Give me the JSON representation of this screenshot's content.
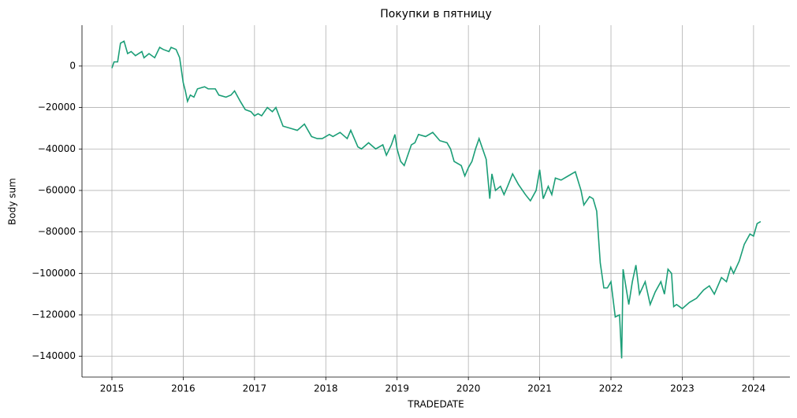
{
  "chart_data": {
    "type": "line",
    "title": "Покупки в пятницу",
    "x_label": "TRADEDATE",
    "y_label": "Body sum",
    "grid": true,
    "xlim": [
      2014.58,
      2024.51
    ],
    "ylim": [
      -150000,
      19700
    ],
    "xticks": [
      2015,
      2016,
      2017,
      2018,
      2019,
      2020,
      2021,
      2022,
      2023,
      2024
    ],
    "yticks": [
      {
        "value": -140000,
        "label": "−140000"
      },
      {
        "value": -120000,
        "label": "−120000"
      },
      {
        "value": -100000,
        "label": "−100000"
      },
      {
        "value": -80000,
        "label": "−80000"
      },
      {
        "value": -60000,
        "label": "−60000"
      },
      {
        "value": -40000,
        "label": "−40000"
      },
      {
        "value": -20000,
        "label": "−20000"
      },
      0
    ],
    "x": [
      2015.0,
      2015.03,
      2015.08,
      2015.12,
      2015.17,
      2015.22,
      2015.27,
      2015.33,
      2015.42,
      2015.45,
      2015.52,
      2015.6,
      2015.67,
      2015.72,
      2015.8,
      2015.83,
      2015.9,
      2015.95,
      2016.0,
      2016.03,
      2016.06,
      2016.1,
      2016.15,
      2016.2,
      2016.3,
      2016.35,
      2016.45,
      2016.5,
      2016.6,
      2016.67,
      2016.72,
      2016.8,
      2016.87,
      2016.95,
      2017.0,
      2017.05,
      2017.1,
      2017.18,
      2017.25,
      2017.3,
      2017.4,
      2017.5,
      2017.6,
      2017.7,
      2017.8,
      2017.88,
      2017.95,
      2018.05,
      2018.1,
      2018.2,
      2018.3,
      2018.35,
      2018.45,
      2018.5,
      2018.6,
      2018.7,
      2018.8,
      2018.85,
      2018.92,
      2018.97,
      2019.0,
      2019.05,
      2019.1,
      2019.15,
      2019.2,
      2019.25,
      2019.3,
      2019.4,
      2019.5,
      2019.6,
      2019.7,
      2019.75,
      2019.8,
      2019.9,
      2019.95,
      2020.0,
      2020.05,
      2020.1,
      2020.15,
      2020.2,
      2020.25,
      2020.3,
      2020.33,
      2020.38,
      2020.45,
      2020.5,
      2020.55,
      2020.62,
      2020.7,
      2020.8,
      2020.87,
      2020.95,
      2021.0,
      2021.05,
      2021.12,
      2021.17,
      2021.22,
      2021.3,
      2021.4,
      2021.5,
      2021.58,
      2021.62,
      2021.7,
      2021.75,
      2021.8,
      2021.85,
      2021.9,
      2021.95,
      2022.0,
      2022.06,
      2022.12,
      2022.15,
      2022.17,
      2022.25,
      2022.3,
      2022.35,
      2022.4,
      2022.48,
      2022.55,
      2022.62,
      2022.7,
      2022.75,
      2022.8,
      2022.85,
      2022.88,
      2022.92,
      2023.0,
      2023.1,
      2023.2,
      2023.3,
      2023.38,
      2023.45,
      2023.55,
      2023.62,
      2023.68,
      2023.72,
      2023.8,
      2023.87,
      2023.95,
      2024.0,
      2024.05,
      2024.1
    ],
    "series": [
      {
        "color": "#1b9e77",
        "values": [
          -1000,
          2000,
          2000,
          11000,
          12000,
          6000,
          7000,
          5000,
          7000,
          4000,
          6000,
          4000,
          9000,
          8000,
          7000,
          9000,
          8000,
          4000,
          -8000,
          -12000,
          -17000,
          -14000,
          -15000,
          -11000,
          -10000,
          -11000,
          -11000,
          -14000,
          -15000,
          -14000,
          -12000,
          -17000,
          -21000,
          -22000,
          -24000,
          -23000,
          -24000,
          -20000,
          -22000,
          -20000,
          -29000,
          -30000,
          -31000,
          -28000,
          -34000,
          -35000,
          -35000,
          -33000,
          -34000,
          -32000,
          -35000,
          -31000,
          -39000,
          -40000,
          -37000,
          -40000,
          -38000,
          -43000,
          -38000,
          -33000,
          -40000,
          -46000,
          -48000,
          -43000,
          -38000,
          -37000,
          -33000,
          -34000,
          -32000,
          -36000,
          -37000,
          -40000,
          -46000,
          -48000,
          -53000,
          -49000,
          -46000,
          -40000,
          -35000,
          -40000,
          -45000,
          -64000,
          -52000,
          -60000,
          -58000,
          -62000,
          -58000,
          -52000,
          -57000,
          -62000,
          -65000,
          -60000,
          -50000,
          -64000,
          -58000,
          -62000,
          -54000,
          -55000,
          -53000,
          -51000,
          -60000,
          -67000,
          -63000,
          -64000,
          -70000,
          -95000,
          -107000,
          -107000,
          -104000,
          -121000,
          -120000,
          -141000,
          -98000,
          -115000,
          -104000,
          -96000,
          -110000,
          -104000,
          -115000,
          -109000,
          -104000,
          -110000,
          -98000,
          -100000,
          -116000,
          -115000,
          -117000,
          -114000,
          -112000,
          -108000,
          -106000,
          -110000,
          -102000,
          -104000,
          -97000,
          -100000,
          -94000,
          -86000,
          -81000,
          -82000,
          -76000,
          -75000
        ]
      }
    ]
  }
}
